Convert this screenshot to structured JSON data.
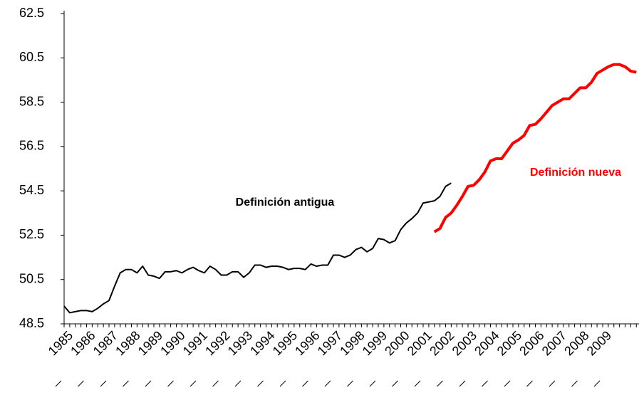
{
  "chart_data": {
    "type": "line",
    "categories": [
      "1985",
      null,
      null,
      null,
      "1986",
      null,
      null,
      null,
      "1987",
      null,
      null,
      null,
      "1988",
      null,
      null,
      null,
      "1989",
      null,
      null,
      null,
      "1990",
      null,
      null,
      null,
      "1991",
      null,
      null,
      null,
      "1992",
      null,
      null,
      null,
      "1993",
      null,
      null,
      null,
      "1994",
      null,
      null,
      null,
      "1995",
      null,
      null,
      null,
      "1996",
      null,
      null,
      null,
      "1997",
      null,
      null,
      null,
      "1998",
      null,
      null,
      null,
      "1999",
      null,
      null,
      null,
      "2000",
      null,
      null,
      null,
      "2001",
      null,
      null,
      null,
      "2002",
      null,
      null,
      null,
      "2003",
      null,
      null,
      null,
      "2004",
      null,
      null,
      null,
      "2005",
      null,
      null,
      null,
      "2006",
      null,
      null,
      null,
      "2007",
      null,
      null,
      null,
      "2008",
      null,
      null,
      null,
      "2009",
      null,
      null,
      null,
      null,
      null,
      null
    ],
    "series": [
      {
        "name": "Definición antigua",
        "color": "#000000",
        "width": 2,
        "values": [
          49.3,
          49.0,
          49.05,
          49.1,
          49.1,
          49.05,
          49.2,
          49.4,
          49.55,
          50.2,
          50.8,
          50.95,
          50.95,
          50.8,
          51.1,
          50.7,
          50.65,
          50.55,
          50.85,
          50.85,
          50.9,
          50.8,
          50.95,
          51.05,
          50.9,
          50.8,
          51.1,
          50.95,
          50.7,
          50.7,
          50.85,
          50.85,
          50.6,
          50.8,
          51.15,
          51.15,
          51.05,
          51.1,
          51.1,
          51.05,
          50.95,
          51.0,
          51.0,
          50.95,
          51.2,
          51.1,
          51.15,
          51.15,
          51.6,
          51.6,
          51.5,
          51.6,
          51.85,
          51.95,
          51.75,
          51.9,
          52.35,
          52.3,
          52.15,
          52.25,
          52.75,
          53.05,
          53.25,
          53.5,
          53.95,
          54.0,
          54.05,
          54.25,
          54.7,
          54.85,
          null,
          null,
          null,
          null,
          null,
          null,
          null,
          null,
          null,
          null,
          null,
          null,
          null,
          null,
          null,
          null,
          null,
          null,
          null,
          null,
          null,
          null,
          null,
          null,
          null,
          null,
          null,
          null,
          null,
          null,
          null,
          null,
          null
        ]
      },
      {
        "name": "Definición nueva",
        "color": "#ff0000",
        "width": 4,
        "values": [
          null,
          null,
          null,
          null,
          null,
          null,
          null,
          null,
          null,
          null,
          null,
          null,
          null,
          null,
          null,
          null,
          null,
          null,
          null,
          null,
          null,
          null,
          null,
          null,
          null,
          null,
          null,
          null,
          null,
          null,
          null,
          null,
          null,
          null,
          null,
          null,
          null,
          null,
          null,
          null,
          null,
          null,
          null,
          null,
          null,
          null,
          null,
          null,
          null,
          null,
          null,
          null,
          null,
          null,
          null,
          null,
          null,
          null,
          null,
          null,
          null,
          null,
          null,
          null,
          null,
          null,
          52.65,
          52.8,
          53.3,
          53.5,
          53.85,
          54.25,
          54.7,
          54.75,
          55.0,
          55.35,
          55.85,
          55.95,
          55.95,
          56.3,
          56.65,
          56.8,
          57.0,
          57.45,
          57.5,
          57.75,
          58.05,
          58.35,
          58.5,
          58.65,
          58.65,
          58.9,
          59.15,
          59.15,
          59.4,
          59.8,
          59.95,
          60.1,
          60.2,
          60.2,
          60.1,
          59.9,
          59.85
        ]
      }
    ],
    "ylim": [
      48.5,
      62.5
    ],
    "yticks": [
      48.5,
      50.5,
      52.5,
      54.5,
      56.5,
      58.5,
      60.5,
      62.5
    ],
    "grid": false
  }
}
